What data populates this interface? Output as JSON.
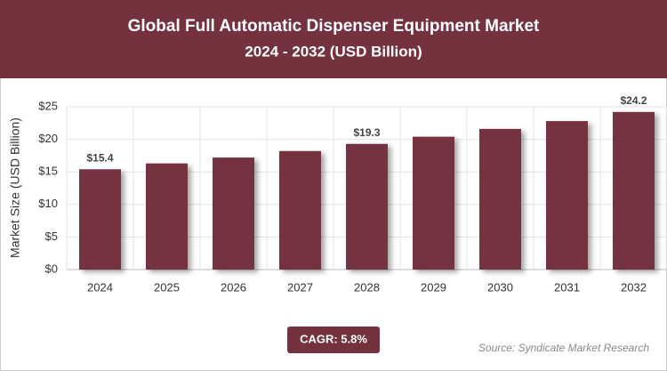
{
  "chart_data": {
    "type": "bar",
    "title": "Global Full Automatic Dispenser Equipment Market",
    "subtitle": "2024 - 2032 (USD Billion)",
    "y_label": "Market Size (USD Billion)",
    "categories": [
      "2024",
      "2025",
      "2026",
      "2027",
      "2028",
      "2029",
      "2030",
      "2031",
      "2032"
    ],
    "values": [
      15.4,
      16.3,
      17.2,
      18.2,
      19.3,
      20.4,
      21.6,
      22.8,
      24.2
    ],
    "value_labels": [
      "$15.4",
      null,
      null,
      null,
      "$19.3",
      null,
      null,
      null,
      "$24.2"
    ],
    "color": "#74323f",
    "ylim": [
      0,
      25
    ],
    "yticks": [
      {
        "value": 0,
        "label": "$0"
      },
      {
        "value": 5,
        "label": "$5"
      },
      {
        "value": 10,
        "label": "$10"
      },
      {
        "value": 15,
        "label": "$15"
      },
      {
        "value": 20,
        "label": "$20"
      },
      {
        "value": 25,
        "label": "$25"
      }
    ],
    "grid": true,
    "cagr": "CAGR: 5.8%",
    "source": "Source: Syndicate Market Research"
  }
}
